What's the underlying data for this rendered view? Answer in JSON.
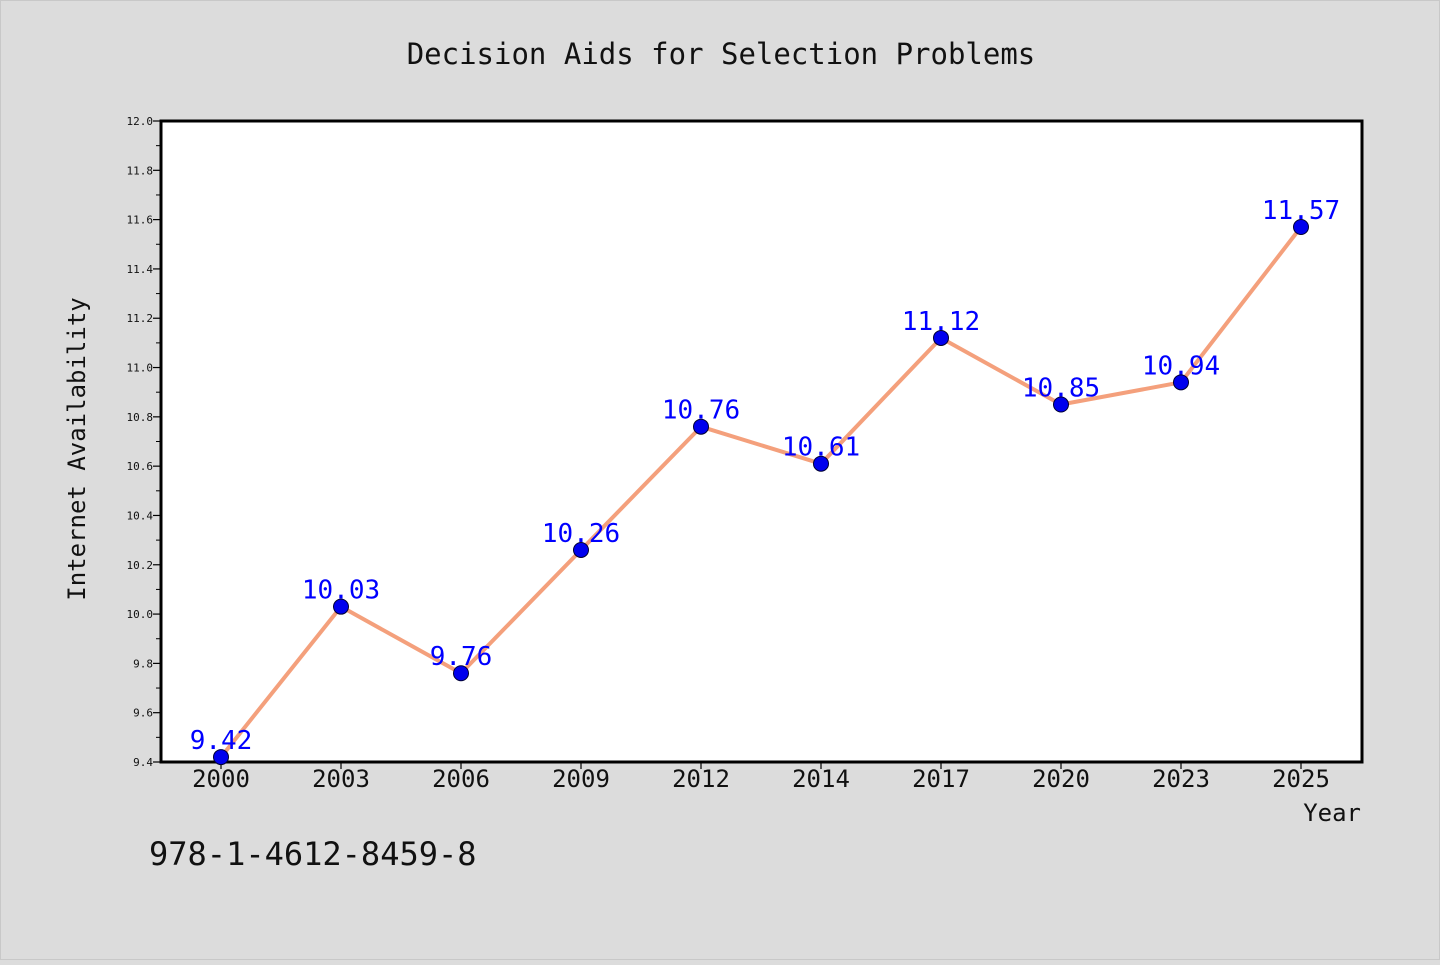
{
  "chart_data": {
    "type": "line",
    "title": "Decision Aids for Selection Problems",
    "xlabel": "Year",
    "ylabel": "Internet Availability",
    "categories": [
      "2000",
      "2003",
      "2006",
      "2009",
      "2012",
      "2014",
      "2017",
      "2020",
      "2023",
      "2025"
    ],
    "series": [
      {
        "values": [
          9.42,
          10.03,
          9.76,
          10.26,
          10.76,
          10.61,
          11.12,
          10.85,
          10.94,
          11.57
        ]
      }
    ],
    "data_labels": [
      "9.42",
      "10.03",
      "9.76",
      "10.26",
      "10.76",
      "10.61",
      "11.12",
      "10.85",
      "10.94",
      "11.57"
    ],
    "ylim": [
      9.4,
      12.0
    ],
    "yticks": [
      9.4,
      9.6,
      9.8,
      10.0,
      10.2,
      10.4,
      10.6,
      10.8,
      11.0,
      11.2,
      11.4,
      11.6,
      11.8,
      12.0
    ],
    "ytick_labels": [
      "9.4",
      "9.6",
      "9.8",
      "10.0",
      "10.2",
      "10.4",
      "10.6",
      "10.8",
      "11.0",
      "11.2",
      "11.4",
      "11.6",
      "11.8",
      "12.0"
    ],
    "grid": false,
    "legend": "none",
    "line_color": "#f4a07c",
    "marker_color": "#0000ee",
    "label_color": "#0000ff",
    "annotation": "978-1-4612-8459-8"
  }
}
